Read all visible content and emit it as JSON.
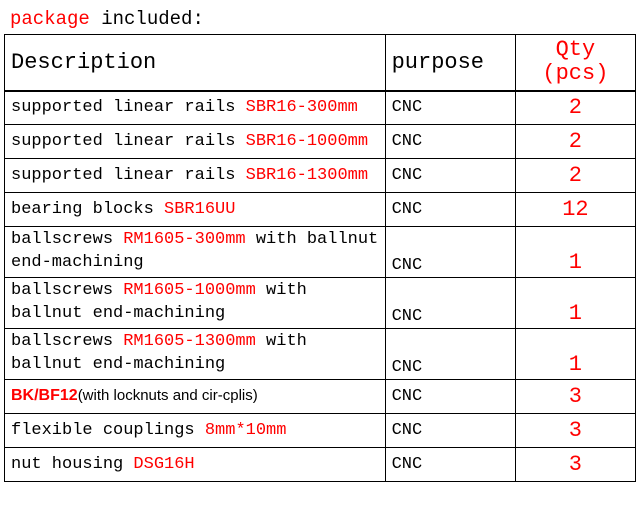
{
  "title_prefix": "package",
  "title_suffix": " included:",
  "header": {
    "description": "Description",
    "purpose": "purpose",
    "qty_l1": "Qty",
    "qty_l2": "(pcs)"
  },
  "rows": [
    {
      "pre": "supported linear rails ",
      "hl": "SBR16-300mm",
      "post": "",
      "purpose": "CNC",
      "qty": "2",
      "multi": false
    },
    {
      "pre": "supported linear rails ",
      "hl": "SBR16-1000mm",
      "post": "",
      "purpose": "CNC",
      "qty": "2",
      "multi": false
    },
    {
      "pre": "supported linear rails ",
      "hl": "SBR16-1300mm",
      "post": "",
      "purpose": "CNC",
      "qty": "2",
      "multi": false
    },
    {
      "pre": "bearing blocks ",
      "hl": "SBR16UU",
      "post": "",
      "purpose": "CNC",
      "qty": "12",
      "multi": false
    },
    {
      "pre": "ballscrews ",
      "hl": "RM1605-300mm",
      "post": " with ballnut end-machining",
      "purpose": "CNC",
      "qty": "1",
      "multi": true
    },
    {
      "pre": "ballscrews ",
      "hl": "RM1605-1000mm",
      "post": " with ballnut end-machining",
      "purpose": "CNC",
      "qty": "1",
      "multi": true
    },
    {
      "pre": "ballscrews ",
      "hl": "RM1605-1300mm",
      "post": " with ballnut end-machining",
      "purpose": "CNC",
      "qty": "1",
      "multi": true
    },
    {
      "pre": "",
      "hl": "BK/BF12",
      "post": "(with locknuts and cir-cplis)",
      "purpose": "CNC",
      "qty": "3",
      "multi": false,
      "sans": true
    },
    {
      "pre": "flexible couplings ",
      "hl": "8mm*10mm",
      "post": "",
      "purpose": "CNC",
      "qty": "3",
      "multi": false
    },
    {
      "pre": "nut housing ",
      "hl": "DSG16H",
      "post": "",
      "purpose": "CNC",
      "qty": "3",
      "multi": false
    }
  ]
}
